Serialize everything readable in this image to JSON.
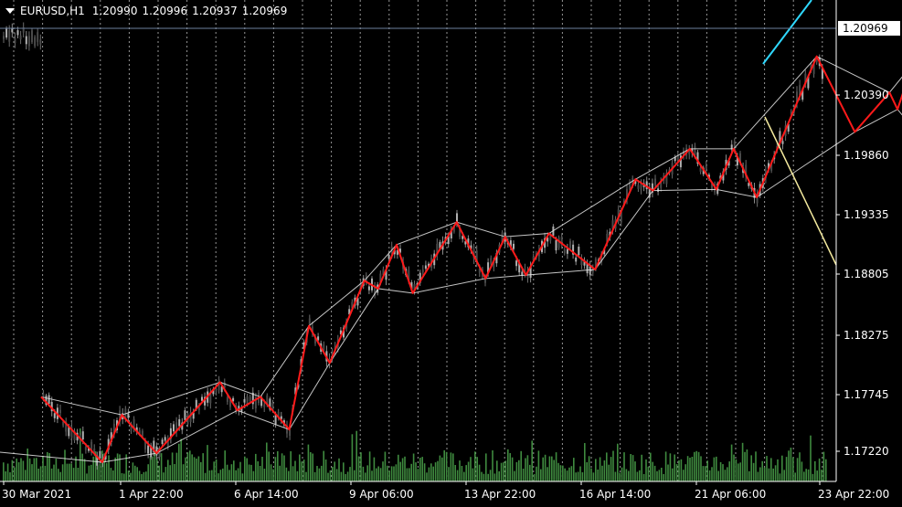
{
  "header": {
    "symbol": "EURUSD,H1",
    "open": "1.20990",
    "high": "1.20996",
    "low": "1.20937",
    "close": "1.20969"
  },
  "price_axis": {
    "labels": [
      "1.20390",
      "1.19860",
      "1.19335",
      "1.18805",
      "1.18275",
      "1.17745",
      "1.17220"
    ],
    "current_price_label": "1.20969"
  },
  "time_axis": {
    "labels": [
      "30 Mar 2021",
      "1 Apr 22:00",
      "6 Apr 14:00",
      "9 Apr 06:00",
      "13 Apr 22:00",
      "16 Apr 14:00",
      "21 Apr 06:00",
      "23 Apr 22:00"
    ]
  },
  "colors": {
    "background": "#000000",
    "candle_up": "#8a8a8a",
    "candle_down": "#6c6c6c",
    "zigzag": "#ff1a1a",
    "envelope": "#e8e8e8",
    "volume": "#3f8a3f",
    "label_text": "#a0aec8",
    "cyan_line": "#2fd8ff",
    "yellow_line": "#f4ea9e",
    "grid": "#c8c8c8"
  },
  "chart_data": {
    "type": "line",
    "symbol": "EURUSD",
    "timeframe": "H1",
    "ylim": [
      1.1695,
      1.2122
    ],
    "x_tick_labels": [
      "30 Mar 2021",
      "1 Apr 22:00",
      "6 Apr 14:00",
      "9 Apr 06:00",
      "13 Apr 22:00",
      "16 Apr 14:00",
      "21 Apr 06:00",
      "23 Apr 22:00"
    ],
    "y_tick_labels": [
      "1.20390",
      "1.19860",
      "1.19335",
      "1.18805",
      "1.18275",
      "1.17745",
      "1.17220"
    ],
    "last_price": 1.20969,
    "zigzag_pivots": [
      {
        "x": 0.0,
        "y": 1.177
      },
      {
        "x": 0.53,
        "y": 1.1712
      },
      {
        "x": 0.7,
        "y": 1.1754
      },
      {
        "x": 1.0,
        "y": 1.172
      },
      {
        "x": 1.55,
        "y": 1.1783
      },
      {
        "x": 1.7,
        "y": 1.1758
      },
      {
        "x": 1.9,
        "y": 1.177
      },
      {
        "x": 2.15,
        "y": 1.1741
      },
      {
        "x": 2.32,
        "y": 1.1833
      },
      {
        "x": 2.5,
        "y": 1.18
      },
      {
        "x": 2.8,
        "y": 1.1873
      },
      {
        "x": 2.92,
        "y": 1.1866
      },
      {
        "x": 3.08,
        "y": 1.1905
      },
      {
        "x": 3.22,
        "y": 1.1862
      },
      {
        "x": 3.6,
        "y": 1.1925
      },
      {
        "x": 3.85,
        "y": 1.1875
      },
      {
        "x": 4.02,
        "y": 1.1912
      },
      {
        "x": 4.2,
        "y": 1.1878
      },
      {
        "x": 4.4,
        "y": 1.1915
      },
      {
        "x": 4.8,
        "y": 1.1883
      },
      {
        "x": 5.15,
        "y": 1.1963
      },
      {
        "x": 5.3,
        "y": 1.1953
      },
      {
        "x": 5.62,
        "y": 1.199
      },
      {
        "x": 5.85,
        "y": 1.1954
      },
      {
        "x": 6.0,
        "y": 1.199
      },
      {
        "x": 6.2,
        "y": 1.1947
      },
      {
        "x": 6.72,
        "y": 1.2072
      },
      {
        "x": 7.05,
        "y": 1.2005
      },
      {
        "x": 7.35,
        "y": 1.204
      },
      {
        "x": 7.42,
        "y": 1.2025
      },
      {
        "x": 7.55,
        "y": 1.2065
      },
      {
        "x": 7.62,
        "y": 1.2
      },
      {
        "x": 7.95,
        "y": 1.209
      }
    ],
    "volume_note": "hourly tick volume histogram at bottom"
  }
}
